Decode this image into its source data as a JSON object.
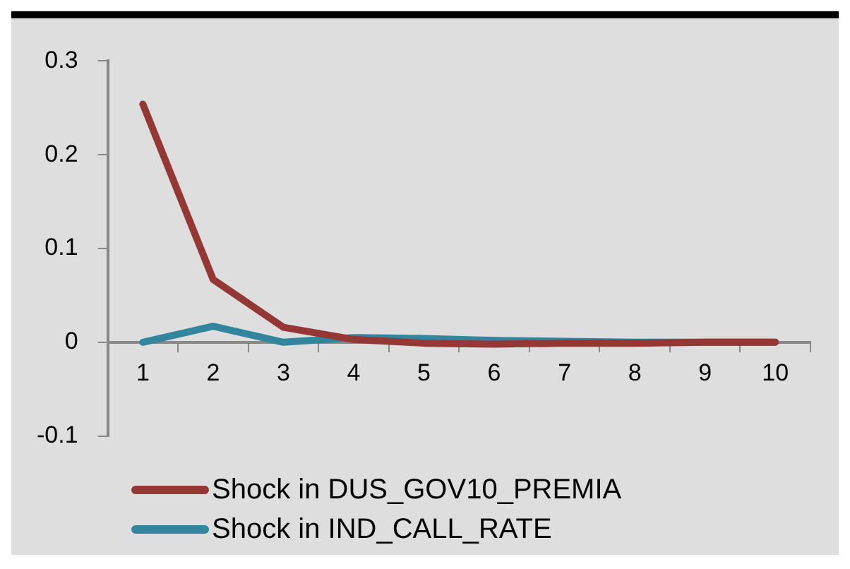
{
  "chart_data": {
    "type": "line",
    "categories": [
      "1",
      "2",
      "3",
      "4",
      "5",
      "6",
      "7",
      "8",
      "9",
      "10"
    ],
    "series": [
      {
        "name": "Shock in DUS_GOV10_PREMIA",
        "color": "#953735",
        "values": [
          0.254,
          0.067,
          0.016,
          0.003,
          -0.001,
          -0.002,
          -0.001,
          -0.001,
          0,
          0
        ]
      },
      {
        "name": "Shock in IND_CALL_RATE",
        "color": "#31859c",
        "values": [
          0,
          0.017,
          0,
          0.005,
          0.004,
          0.002,
          0.001,
          0,
          0,
          0
        ]
      }
    ],
    "ylim": [
      -0.1,
      0.3
    ],
    "yticks": [
      -0.1,
      0,
      0.1,
      0.2,
      0.3
    ],
    "grid": false,
    "legend": "bottom",
    "marker": "none",
    "line_style": "solid"
  }
}
